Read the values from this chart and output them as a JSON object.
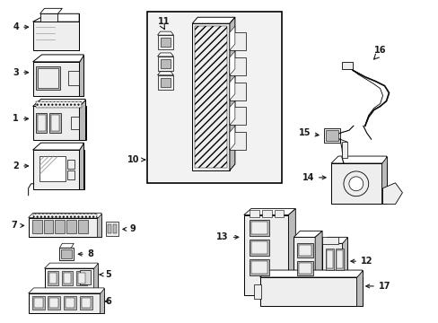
{
  "background_color": "#ffffff",
  "line_color": "#000000",
  "text_color": "#1a1a1a",
  "fig_width": 4.89,
  "fig_height": 3.6,
  "dpi": 100,
  "gray_fill": "#d8d8d8",
  "light_gray": "#eeeeee",
  "mid_gray": "#bbbbbb",
  "dark_gray": "#888888"
}
